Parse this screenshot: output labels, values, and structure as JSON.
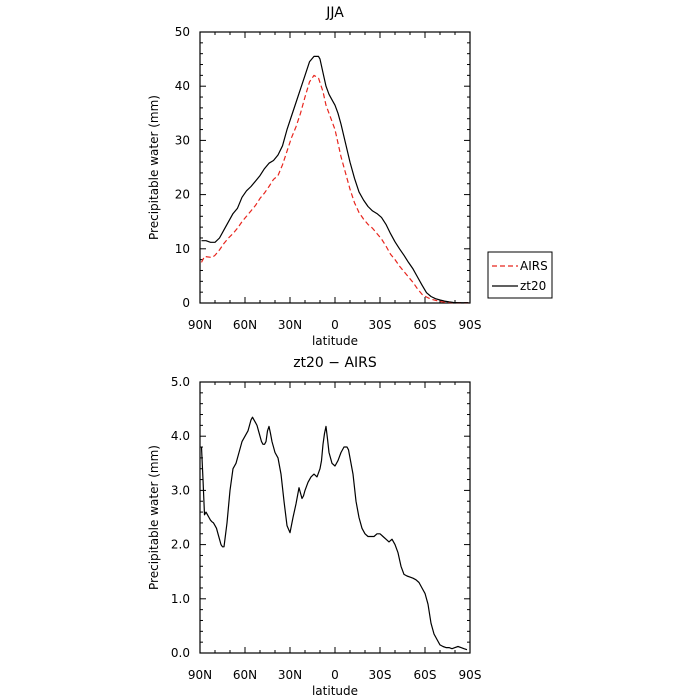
{
  "chart_data": [
    {
      "type": "line",
      "title": "JJA",
      "xlabel": "latitude",
      "ylabel": "Precipitable water (mm)",
      "xlim": [
        90,
        -90
      ],
      "ylim": [
        0,
        50
      ],
      "x_tick_values": [
        90,
        60,
        30,
        0,
        -30,
        -60,
        -90
      ],
      "x_tick_labels": [
        "90N",
        "60N",
        "30N",
        "0",
        "30S",
        "60S",
        "90S"
      ],
      "y_tick_values": [
        0,
        10,
        20,
        30,
        40,
        50
      ],
      "y_tick_labels": [
        "0",
        "10",
        "20",
        "30",
        "40",
        "50"
      ],
      "legend": {
        "placement": "outside-right",
        "entries": [
          "AIRS",
          "zt20"
        ]
      },
      "grid": false,
      "series": [
        {
          "name": "AIRS",
          "color": "#e8261e",
          "dash": "dashed",
          "x": [
            89,
            87,
            85,
            82,
            80,
            77,
            74,
            71,
            68,
            65,
            62,
            59,
            56,
            53,
            50,
            47,
            44,
            41,
            38,
            35,
            32,
            29,
            26,
            23,
            20,
            17,
            14,
            11,
            8,
            6,
            4,
            2,
            0,
            -2,
            -4,
            -7,
            -10,
            -13,
            -16,
            -19,
            -22,
            -25,
            -28,
            -31,
            -34,
            -37,
            -40,
            -43,
            -46,
            -49,
            -52,
            -55,
            -58,
            -61,
            -64,
            -67,
            -70,
            -73,
            -76,
            -79,
            -82,
            -85,
            -88,
            -89
          ],
          "y": [
            7.5,
            8.6,
            8.5,
            8.4,
            8.8,
            9.8,
            11.0,
            12.0,
            12.8,
            13.8,
            15.0,
            16.0,
            17.0,
            18.0,
            19.3,
            20.3,
            21.5,
            22.8,
            23.5,
            25.5,
            28.0,
            30.5,
            32.5,
            35.0,
            38.0,
            40.8,
            42.0,
            41.5,
            39.0,
            36.5,
            35.0,
            33.5,
            32.0,
            29.5,
            27.0,
            24.0,
            21.0,
            18.5,
            16.7,
            15.5,
            14.5,
            13.8,
            12.8,
            11.8,
            10.5,
            9.0,
            8.0,
            6.8,
            5.8,
            4.8,
            3.8,
            2.6,
            1.6,
            1.1,
            0.7,
            0.5,
            0.3,
            0.15,
            0.1,
            0.05,
            0.05,
            0.05,
            0.05,
            0.05
          ]
        },
        {
          "name": "zt20",
          "color": "#000000",
          "dash": "solid",
          "x": [
            89,
            86,
            83,
            80,
            77,
            74,
            71,
            68,
            65,
            62,
            59,
            56,
            53,
            50,
            47,
            44,
            41,
            38,
            35,
            32,
            29,
            26,
            23,
            20,
            17,
            14,
            11,
            10,
            8,
            6,
            4,
            2,
            0,
            -2,
            -4,
            -7,
            -10,
            -13,
            -16,
            -19,
            -22,
            -25,
            -28,
            -31,
            -34,
            -37,
            -40,
            -43,
            -46,
            -49,
            -52,
            -55,
            -58,
            -61,
            -64,
            -67,
            -70,
            -73,
            -76,
            -79,
            -82,
            -85,
            -88,
            -89
          ],
          "y": [
            11.5,
            11.5,
            11.2,
            11.2,
            12.0,
            13.5,
            15.0,
            16.5,
            17.5,
            19.5,
            20.7,
            21.5,
            22.5,
            23.5,
            24.8,
            25.8,
            26.3,
            27.3,
            29.0,
            32.0,
            34.5,
            37.0,
            39.5,
            42.0,
            44.5,
            45.5,
            45.5,
            45.0,
            42.5,
            40.0,
            38.5,
            37.5,
            36.5,
            35.0,
            33.0,
            29.5,
            26.0,
            23.0,
            20.5,
            19.0,
            17.8,
            17.0,
            16.5,
            15.8,
            14.5,
            12.8,
            11.3,
            10.0,
            8.8,
            7.5,
            6.3,
            4.8,
            3.3,
            1.9,
            1.2,
            0.8,
            0.55,
            0.35,
            0.2,
            0.1,
            0.05,
            0.05,
            0.05,
            0.05
          ]
        }
      ]
    },
    {
      "type": "line",
      "title": "zt20 − AIRS",
      "xlabel": "latitude",
      "ylabel": "Precipitable water (mm)",
      "xlim": [
        90,
        -90
      ],
      "ylim": [
        0,
        5
      ],
      "x_tick_values": [
        90,
        60,
        30,
        0,
        -30,
        -60,
        -90
      ],
      "x_tick_labels": [
        "90N",
        "60N",
        "30N",
        "0",
        "30S",
        "60S",
        "90S"
      ],
      "y_tick_values": [
        0,
        1,
        2,
        3,
        4,
        5
      ],
      "y_tick_labels": [
        "0.0",
        "1.0",
        "2.0",
        "3.0",
        "4.0",
        "5.0"
      ],
      "grid": false,
      "series": [
        {
          "name": "zt20",
          "color": "#000000",
          "dash": "solid",
          "x": [
            89,
            88,
            87,
            86,
            85,
            84,
            83,
            82,
            81,
            80,
            79,
            78,
            77,
            76,
            75,
            74,
            72,
            70,
            68,
            66,
            64,
            62,
            60,
            58,
            57,
            56,
            55,
            54,
            53,
            52,
            51,
            50,
            49,
            48,
            47,
            46,
            45,
            44,
            43,
            42,
            41,
            40,
            38,
            36,
            34,
            32,
            30,
            28,
            26,
            24,
            22,
            21,
            20,
            18,
            16,
            14,
            12,
            10,
            9,
            8,
            7,
            6,
            5,
            4,
            2,
            0,
            -2,
            -4,
            -6,
            -8,
            -9,
            -10,
            -12,
            -14,
            -16,
            -18,
            -20,
            -22,
            -24,
            -26,
            -28,
            -30,
            -32,
            -34,
            -36,
            -38,
            -40,
            -42,
            -44,
            -46,
            -48,
            -50,
            -52,
            -54,
            -56,
            -58,
            -60,
            -62,
            -64,
            -66,
            -68,
            -70,
            -72,
            -74,
            -76,
            -78,
            -80,
            -82,
            -84,
            -86,
            -88
          ],
          "y": [
            3.8,
            3.2,
            2.55,
            2.6,
            2.55,
            2.5,
            2.45,
            2.42,
            2.4,
            2.35,
            2.3,
            2.2,
            2.1,
            2.0,
            1.96,
            1.96,
            2.4,
            3.0,
            3.4,
            3.5,
            3.7,
            3.9,
            4.0,
            4.1,
            4.2,
            4.3,
            4.35,
            4.3,
            4.25,
            4.2,
            4.1,
            4.0,
            3.9,
            3.85,
            3.85,
            3.9,
            4.1,
            4.18,
            4.05,
            3.9,
            3.8,
            3.7,
            3.6,
            3.3,
            2.8,
            2.35,
            2.22,
            2.5,
            2.75,
            3.05,
            2.85,
            2.9,
            3.0,
            3.15,
            3.25,
            3.3,
            3.25,
            3.4,
            3.55,
            3.85,
            4.05,
            4.18,
            3.95,
            3.7,
            3.5,
            3.45,
            3.55,
            3.7,
            3.8,
            3.8,
            3.75,
            3.6,
            3.3,
            2.8,
            2.5,
            2.3,
            2.2,
            2.15,
            2.15,
            2.15,
            2.2,
            2.2,
            2.15,
            2.1,
            2.05,
            2.1,
            2.0,
            1.85,
            1.6,
            1.45,
            1.42,
            1.4,
            1.38,
            1.35,
            1.3,
            1.2,
            1.1,
            0.9,
            0.55,
            0.35,
            0.25,
            0.15,
            0.12,
            0.1,
            0.1,
            0.08,
            0.1,
            0.12,
            0.1,
            0.08,
            0.06
          ]
        }
      ]
    }
  ]
}
